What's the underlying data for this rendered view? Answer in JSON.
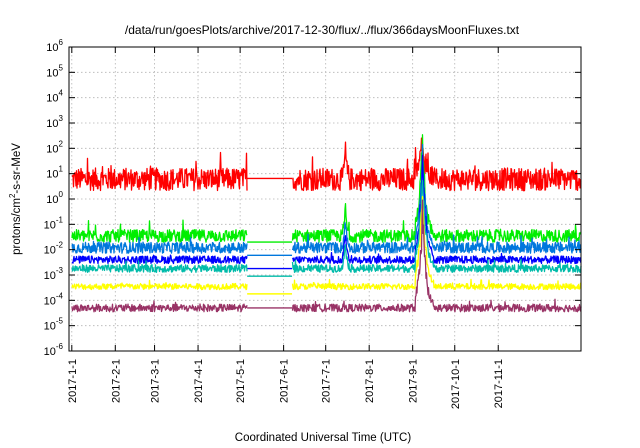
{
  "chart_data": {
    "type": "line",
    "title": "/data/run/goesPlots/archive/2017-12-30/flux/../flux/366daysMoonFluxes.txt",
    "xlabel": "Coordinated Universal Time (UTC)",
    "ylabel": "protons/cm2-s-sr-MeV",
    "ylabel_parts": {
      "prefix": "protons/cm",
      "sup": "2",
      "suffix": "-s-sr-MeV"
    },
    "yscale": "log",
    "ylim": [
      1e-06,
      1000000.0
    ],
    "y_ticks": [
      {
        "base": "10",
        "exp": "-6"
      },
      {
        "base": "10",
        "exp": "-5"
      },
      {
        "base": "10",
        "exp": "-4"
      },
      {
        "base": "10",
        "exp": "-3"
      },
      {
        "base": "10",
        "exp": "-2"
      },
      {
        "base": "10",
        "exp": "-1"
      },
      {
        "base": "10",
        "exp": "0"
      },
      {
        "base": "10",
        "exp": "1"
      },
      {
        "base": "10",
        "exp": "2"
      },
      {
        "base": "10",
        "exp": "3"
      },
      {
        "base": "10",
        "exp": "4"
      },
      {
        "base": "10",
        "exp": "5"
      },
      {
        "base": "10",
        "exp": "6"
      }
    ],
    "xlim": [
      "2016-12-30",
      "2017-12-30"
    ],
    "x_ticks": [
      "2017-1-1",
      "2017-2-1",
      "2017-3-1",
      "2017-4-1",
      "2017-5-1",
      "2017-6-1",
      "2017-7-1",
      "2017-8-1",
      "2017-9-1",
      "2017-10-1",
      "2017-11-1"
    ],
    "grid": true,
    "data_gap": [
      "2017-05-06",
      "2017-06-07"
    ],
    "series": [
      {
        "color": "#ff0000",
        "baseline": 6,
        "gap_level": 6.5,
        "spike": 300,
        "noise_decades": 0.45
      },
      {
        "color": "#00ee00",
        "baseline": 0.035,
        "gap_level": 0.02,
        "spike": 200,
        "noise_decades": 0.25
      },
      {
        "color": "#0077dd",
        "baseline": 0.012,
        "gap_level": 0.006,
        "spike": 80,
        "noise_decades": 0.22
      },
      {
        "color": "#0000ff",
        "baseline": 0.004,
        "gap_level": 0.0018,
        "spike": 40,
        "noise_decades": 0.15
      },
      {
        "color": "#00bbaa",
        "baseline": 0.0018,
        "gap_level": 0.0009,
        "spike": 15,
        "noise_decades": 0.15
      },
      {
        "color": "#ffff00",
        "baseline": 0.00035,
        "gap_level": 0.00018,
        "spike": 3,
        "noise_decades": 0.12
      },
      {
        "color": "#993366",
        "baseline": 5e-05,
        "gap_level": 5e-05,
        "spike": 0.4,
        "noise_decades": 0.15
      }
    ]
  }
}
